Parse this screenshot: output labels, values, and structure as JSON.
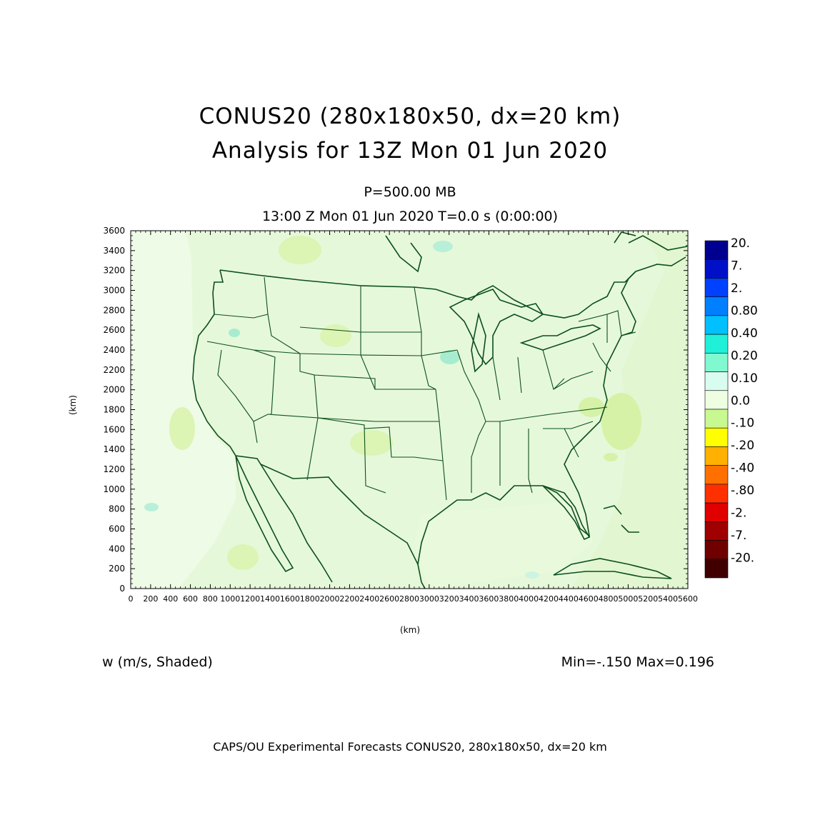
{
  "title_line1": "CONUS20 (280x180x50, dx=20 km)",
  "title_line2": "Analysis for 13Z Mon 01 Jun 2020",
  "level": "P=500.00 MB",
  "valid_time": "13:00 Z Mon 01 Jun 2020    T=0.0 s (0:00:00)",
  "variable_label": "w (m/s, Shaded)",
  "min_max": "Min=-.150 Max=0.196",
  "footer": "CAPS/OU Experimental Forecasts  CONUS20, 280x180x50, dx=20 km",
  "x_unit": "(km)",
  "y_unit": "(km)",
  "x_axis": {
    "ticks": [
      "0",
      "200",
      "400",
      "600",
      "800",
      "1000",
      "1200",
      "1400",
      "1600",
      "1800",
      "2000",
      "2200",
      "2400",
      "2600",
      "2800",
      "3000",
      "3200",
      "3400",
      "3600",
      "3800",
      "4000",
      "4200",
      "4400",
      "4600",
      "4800",
      "5000",
      "5200",
      "5400",
      "5600"
    ],
    "range_km": [
      0,
      5600
    ]
  },
  "y_axis": {
    "ticks": [
      "0",
      "200",
      "400",
      "600",
      "800",
      "1000",
      "1200",
      "1400",
      "1600",
      "1800",
      "2000",
      "2200",
      "2400",
      "2600",
      "2800",
      "3000",
      "3200",
      "3400",
      "3600"
    ],
    "range_km": [
      0,
      3600
    ]
  },
  "colorbar": [
    {
      "label": "20.",
      "color": "#000090"
    },
    {
      "label": "7.",
      "color": "#0010c8"
    },
    {
      "label": "2.",
      "color": "#0040ff"
    },
    {
      "label": "0.80",
      "color": "#0080ff"
    },
    {
      "label": "0.40",
      "color": "#00c0ff"
    },
    {
      "label": "0.20",
      "color": "#20f0d8"
    },
    {
      "label": "0.10",
      "color": "#80f8d0"
    },
    {
      "label": "0.0",
      "color": "#d8fcf0"
    },
    {
      "label": "-.10",
      "color": "#eefee0"
    },
    {
      "label": "-.20",
      "color": "#c8f890"
    },
    {
      "label": "-.40",
      "color": "#ffff00"
    },
    {
      "label": "-.80",
      "color": "#ffb000"
    },
    {
      "label": "-2.",
      "color": "#ff7000"
    },
    {
      "label": "-7.",
      "color": "#ff3000"
    },
    {
      "label": "-20.",
      "color": "#e00000"
    },
    {
      "label": "",
      "color": "#a00000"
    },
    {
      "label": "",
      "color": "#700000"
    },
    {
      "label": "",
      "color": "#400000"
    }
  ],
  "colors": {
    "field_background": "#e4f7d8",
    "coastline": "#0b4f1a"
  }
}
